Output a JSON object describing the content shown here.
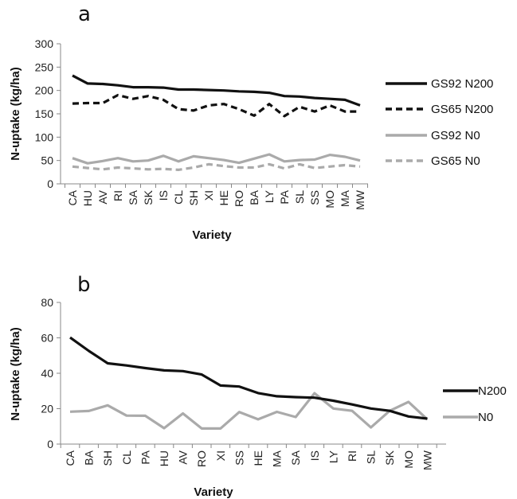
{
  "chart_data": [
    {
      "type": "line",
      "panel_label": "a",
      "xlabel": "Variety",
      "ylabel": "N-uptake (kg/ha)",
      "ylim": [
        0,
        300
      ],
      "yticks": [
        "0",
        "50",
        "100",
        "150",
        "200",
        "250",
        "300"
      ],
      "categories": [
        "CA",
        "HU",
        "AV",
        "RI",
        "SA",
        "SK",
        "IS",
        "CL",
        "SH",
        "XI",
        "HE",
        "RO",
        "BA",
        "LY",
        "PA",
        "SL",
        "SS",
        "MO",
        "MA",
        "MW"
      ],
      "grid": false,
      "legend_position": "right",
      "series": [
        {
          "name": "GS92 N200",
          "color": "#111111",
          "dash": "solid",
          "values": [
            232,
            215,
            214,
            211,
            207,
            207,
            206,
            202,
            202,
            201,
            200,
            198,
            197,
            195,
            188,
            187,
            184,
            182,
            180,
            168
          ]
        },
        {
          "name": "GS65 N200",
          "color": "#111111",
          "dash": "dashed",
          "values": [
            172,
            173,
            173,
            190,
            182,
            188,
            180,
            160,
            157,
            168,
            171,
            160,
            146,
            171,
            145,
            165,
            155,
            168,
            155,
            155
          ]
        },
        {
          "name": "GS92 N0",
          "color": "#aaaaaa",
          "dash": "solid",
          "values": [
            55,
            44,
            49,
            55,
            48,
            50,
            60,
            48,
            59,
            55,
            51,
            45,
            54,
            63,
            48,
            51,
            52,
            62,
            58,
            50
          ]
        },
        {
          "name": "GS65 N0",
          "color": "#aaaaaa",
          "dash": "dashed",
          "values": [
            37,
            34,
            31,
            35,
            33,
            31,
            32,
            30,
            35,
            42,
            38,
            35,
            35,
            42,
            33,
            42,
            34,
            37,
            40,
            37
          ]
        }
      ]
    },
    {
      "type": "line",
      "panel_label": "b",
      "xlabel": "Variety",
      "ylabel": "N-uptake (kg/ha)",
      "ylim": [
        0,
        80
      ],
      "yticks": [
        "0",
        "20",
        "40",
        "60",
        "80"
      ],
      "categories": [
        "CA",
        "BA",
        "SH",
        "CL",
        "PA",
        "HU",
        "AV",
        "RO",
        "XI",
        "SS",
        "HE",
        "MA",
        "SA",
        "IS",
        "LY",
        "RI",
        "SL",
        "SK",
        "MO",
        "MW"
      ],
      "grid": false,
      "legend_position": "right",
      "series": [
        {
          "name": "N200",
          "color": "#111111",
          "dash": "solid",
          "values": [
            60.2,
            52.6,
            45.6,
            44.4,
            42.9,
            41.6,
            41.2,
            39.3,
            33.1,
            32.5,
            28.8,
            27.0,
            26.5,
            26.2,
            24.5,
            22.4,
            20.1,
            18.8,
            15.6,
            14.4
          ]
        },
        {
          "name": "N0",
          "color": "#aaaaaa",
          "dash": "solid",
          "values": [
            18.3,
            18.7,
            21.9,
            16.1,
            16.0,
            9.0,
            17.3,
            8.8,
            8.8,
            18.1,
            14.0,
            18.2,
            15.3,
            28.7,
            20.1,
            18.8,
            9.4,
            18.8,
            23.8,
            14.0
          ]
        }
      ]
    }
  ]
}
